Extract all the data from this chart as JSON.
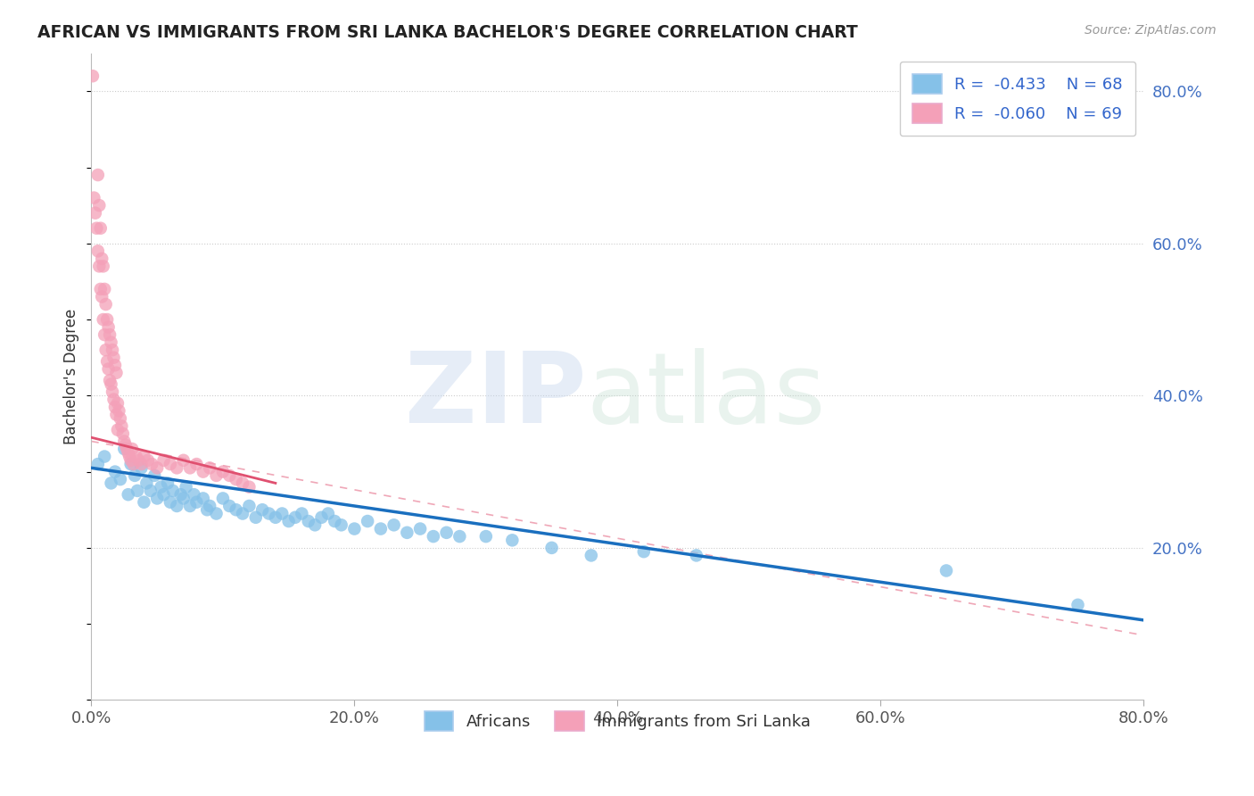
{
  "title": "AFRICAN VS IMMIGRANTS FROM SRI LANKA BACHELOR'S DEGREE CORRELATION CHART",
  "source": "Source: ZipAtlas.com",
  "ylabel": "Bachelor's Degree",
  "xlim": [
    0.0,
    0.8
  ],
  "ylim": [
    0.0,
    0.85
  ],
  "right_ytick_labels": [
    "80.0%",
    "60.0%",
    "40.0%",
    "20.0%"
  ],
  "right_ytick_vals": [
    0.8,
    0.6,
    0.4,
    0.2
  ],
  "xtick_labels": [
    "0.0%",
    "20.0%",
    "40.0%",
    "60.0%",
    "80.0%"
  ],
  "xtick_vals": [
    0.0,
    0.2,
    0.4,
    0.6,
    0.8
  ],
  "legend_blue_r": "-0.433",
  "legend_blue_n": "68",
  "legend_pink_r": "-0.060",
  "legend_pink_n": "69",
  "blue_color": "#85C1E8",
  "pink_color": "#F4A0B8",
  "blue_line_color": "#1A6FBF",
  "pink_line_color": "#E05070",
  "grid_color": "#CCCCCC",
  "africans_x": [
    0.005,
    0.01,
    0.015,
    0.018,
    0.022,
    0.025,
    0.028,
    0.03,
    0.033,
    0.035,
    0.038,
    0.04,
    0.042,
    0.045,
    0.048,
    0.05,
    0.053,
    0.055,
    0.058,
    0.06,
    0.062,
    0.065,
    0.068,
    0.07,
    0.072,
    0.075,
    0.078,
    0.08,
    0.085,
    0.088,
    0.09,
    0.095,
    0.1,
    0.105,
    0.11,
    0.115,
    0.12,
    0.125,
    0.13,
    0.135,
    0.14,
    0.145,
    0.15,
    0.155,
    0.16,
    0.165,
    0.17,
    0.175,
    0.18,
    0.185,
    0.19,
    0.2,
    0.21,
    0.22,
    0.23,
    0.24,
    0.25,
    0.26,
    0.27,
    0.28,
    0.3,
    0.32,
    0.35,
    0.38,
    0.42,
    0.46,
    0.65,
    0.75
  ],
  "africans_y": [
    0.31,
    0.32,
    0.285,
    0.3,
    0.29,
    0.33,
    0.27,
    0.31,
    0.295,
    0.275,
    0.305,
    0.26,
    0.285,
    0.275,
    0.295,
    0.265,
    0.28,
    0.27,
    0.285,
    0.26,
    0.275,
    0.255,
    0.27,
    0.265,
    0.28,
    0.255,
    0.27,
    0.26,
    0.265,
    0.25,
    0.255,
    0.245,
    0.265,
    0.255,
    0.25,
    0.245,
    0.255,
    0.24,
    0.25,
    0.245,
    0.24,
    0.245,
    0.235,
    0.24,
    0.245,
    0.235,
    0.23,
    0.24,
    0.245,
    0.235,
    0.23,
    0.225,
    0.235,
    0.225,
    0.23,
    0.22,
    0.225,
    0.215,
    0.22,
    0.215,
    0.215,
    0.21,
    0.2,
    0.19,
    0.195,
    0.19,
    0.17,
    0.125
  ],
  "srilanka_x": [
    0.001,
    0.002,
    0.003,
    0.004,
    0.005,
    0.005,
    0.006,
    0.006,
    0.007,
    0.007,
    0.008,
    0.008,
    0.009,
    0.009,
    0.01,
    0.01,
    0.011,
    0.011,
    0.012,
    0.012,
    0.013,
    0.013,
    0.014,
    0.014,
    0.015,
    0.015,
    0.016,
    0.016,
    0.017,
    0.017,
    0.018,
    0.018,
    0.019,
    0.019,
    0.02,
    0.02,
    0.021,
    0.022,
    0.023,
    0.024,
    0.025,
    0.026,
    0.027,
    0.028,
    0.029,
    0.03,
    0.031,
    0.032,
    0.034,
    0.036,
    0.038,
    0.04,
    0.043,
    0.046,
    0.05,
    0.055,
    0.06,
    0.065,
    0.07,
    0.075,
    0.08,
    0.085,
    0.09,
    0.095,
    0.1,
    0.105,
    0.11,
    0.115,
    0.12
  ],
  "srilanka_y": [
    0.82,
    0.66,
    0.64,
    0.62,
    0.69,
    0.59,
    0.65,
    0.57,
    0.62,
    0.54,
    0.58,
    0.53,
    0.57,
    0.5,
    0.54,
    0.48,
    0.52,
    0.46,
    0.5,
    0.445,
    0.49,
    0.435,
    0.48,
    0.42,
    0.47,
    0.415,
    0.46,
    0.405,
    0.45,
    0.395,
    0.44,
    0.385,
    0.43,
    0.375,
    0.39,
    0.355,
    0.38,
    0.37,
    0.36,
    0.35,
    0.34,
    0.335,
    0.33,
    0.325,
    0.32,
    0.315,
    0.33,
    0.31,
    0.32,
    0.315,
    0.31,
    0.32,
    0.315,
    0.31,
    0.305,
    0.315,
    0.31,
    0.305,
    0.315,
    0.305,
    0.31,
    0.3,
    0.305,
    0.295,
    0.3,
    0.295,
    0.29,
    0.285,
    0.28
  ],
  "blue_line_x": [
    0.0,
    0.8
  ],
  "blue_line_y": [
    0.305,
    0.105
  ],
  "pink_line_x": [
    0.0,
    0.14
  ],
  "pink_line_y": [
    0.345,
    0.285
  ]
}
